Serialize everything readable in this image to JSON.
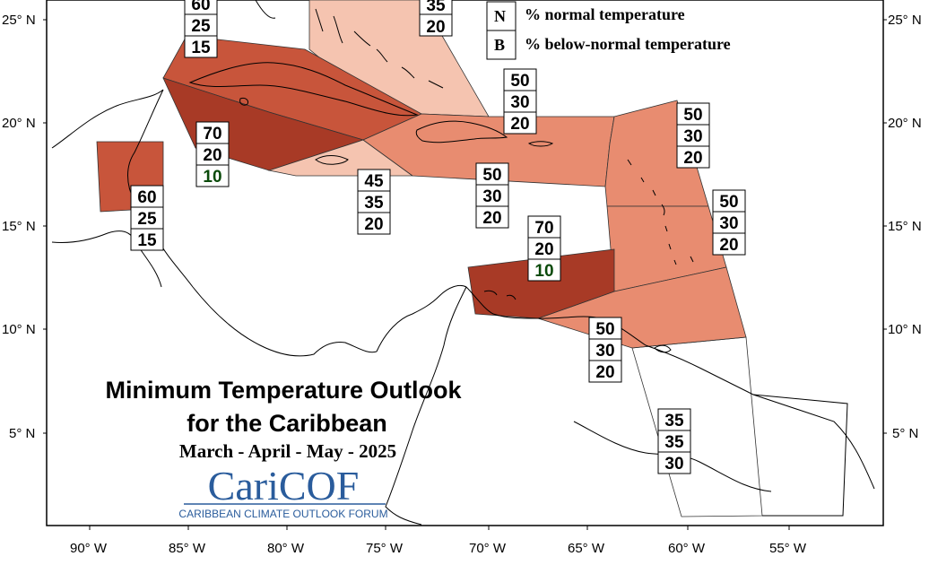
{
  "title": {
    "line1": "Minimum Temperature Outlook",
    "line2": "for the Caribbean",
    "season": "March - April - May - 2025"
  },
  "logo": {
    "name": "CariCOF",
    "subtitle": "CARIBBEAN CLIMATE OUTLOOK FORUM",
    "color": "#2a5c9c"
  },
  "legend": [
    {
      "letter": "N",
      "text": "% normal temperature"
    },
    {
      "letter": "B",
      "text": "% below-normal temperature"
    }
  ],
  "lat_labels": [
    "25° N",
    "20° N",
    "15° N",
    "10° N",
    "5° N"
  ],
  "lon_labels": [
    "90° W",
    "85° W",
    "80° W",
    "75° W",
    "70° W",
    "65° W",
    "60° W",
    "55° W"
  ],
  "colors": {
    "a70": "#a83a26",
    "a60": "#c8553b",
    "a50": "#e88c70",
    "a45": "#f5c4b0",
    "outline": "#000000"
  },
  "regions": [
    {
      "id": "cayman-jamaica-west",
      "values": [
        "70",
        "20",
        "10"
      ],
      "color": "#a83a26"
    },
    {
      "id": "cuba",
      "values": [
        "60",
        "25",
        "15"
      ],
      "color": "#c8553b"
    },
    {
      "id": "belize",
      "values": [
        "60",
        "25",
        "15"
      ],
      "color": "#c8553b"
    },
    {
      "id": "bahamas",
      "values": [
        "",
        "35",
        "20"
      ],
      "color": "#f5c4b0"
    },
    {
      "id": "jamaica",
      "values": [
        "45",
        "35",
        "20"
      ],
      "color": "#f5c4b0"
    },
    {
      "id": "turks-caicos",
      "values": [
        "50",
        "30",
        "20"
      ],
      "color": "#e88c70"
    },
    {
      "id": "hispaniola-puerto-rico",
      "values": [
        "50",
        "30",
        "20"
      ],
      "color": "#e88c70"
    },
    {
      "id": "leeward-islands",
      "values": [
        "50",
        "30",
        "20"
      ],
      "color": "#e88c70"
    },
    {
      "id": "windward-islands",
      "values": [
        "50",
        "30",
        "20"
      ],
      "color": "#e88c70"
    },
    {
      "id": "abc-islands",
      "values": [
        "70",
        "20",
        "10"
      ],
      "color": "#a83a26"
    },
    {
      "id": "trinidad",
      "values": [
        "50",
        "30",
        "20"
      ],
      "color": "#e88c70"
    },
    {
      "id": "guianas",
      "values": [
        "35",
        "35",
        "30"
      ],
      "color": "#ffffff"
    }
  ]
}
